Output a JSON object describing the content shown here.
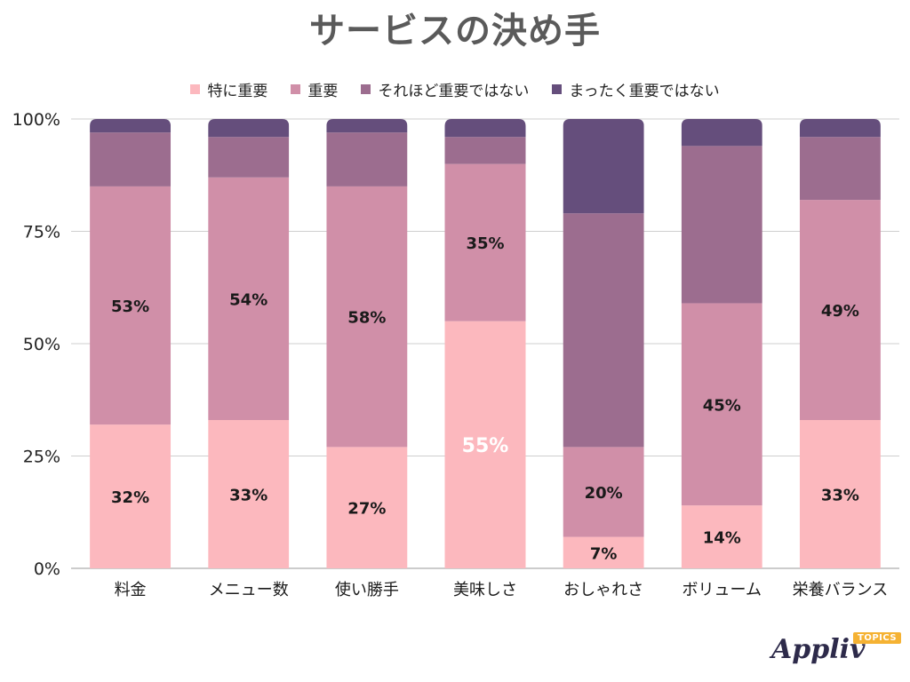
{
  "title": "サービスの決め手",
  "logo": {
    "name": "Appliv",
    "tag": "TOPICS"
  },
  "chart_data": {
    "type": "bar",
    "stacked": true,
    "title": "サービスの決め手",
    "categories": [
      "料金",
      "メニュー数",
      "使い勝手",
      "美味しさ",
      "おしゃれさ",
      "ボリューム",
      "栄養バランス"
    ],
    "series": [
      {
        "name": "特に重要",
        "color": "#fcb8be",
        "values": [
          32,
          33,
          27,
          55,
          7,
          14,
          33
        ],
        "labels": [
          "32%",
          "33%",
          "27%",
          "55%",
          "7%",
          "14%",
          "33%"
        ]
      },
      {
        "name": "重要",
        "color": "#d08fa8",
        "values": [
          53,
          54,
          58,
          35,
          20,
          45,
          49
        ],
        "labels": [
          "53%",
          "54%",
          "58%",
          "35%",
          "20%",
          "45%",
          "49%"
        ]
      },
      {
        "name": "それほど重要ではない",
        "color": "#9c6d8f",
        "values": [
          12,
          9,
          12,
          6,
          52,
          35,
          14
        ]
      },
      {
        "name": "まったく重要ではない",
        "color": "#654e7c",
        "values": [
          3,
          4,
          3,
          4,
          21,
          6,
          4
        ]
      }
    ],
    "yticks": [
      "0%",
      "25%",
      "50%",
      "75%",
      "100%"
    ],
    "ylim": [
      0,
      100
    ],
    "xlabel": "",
    "ylabel": "",
    "legend": "top-center",
    "grid": true
  }
}
